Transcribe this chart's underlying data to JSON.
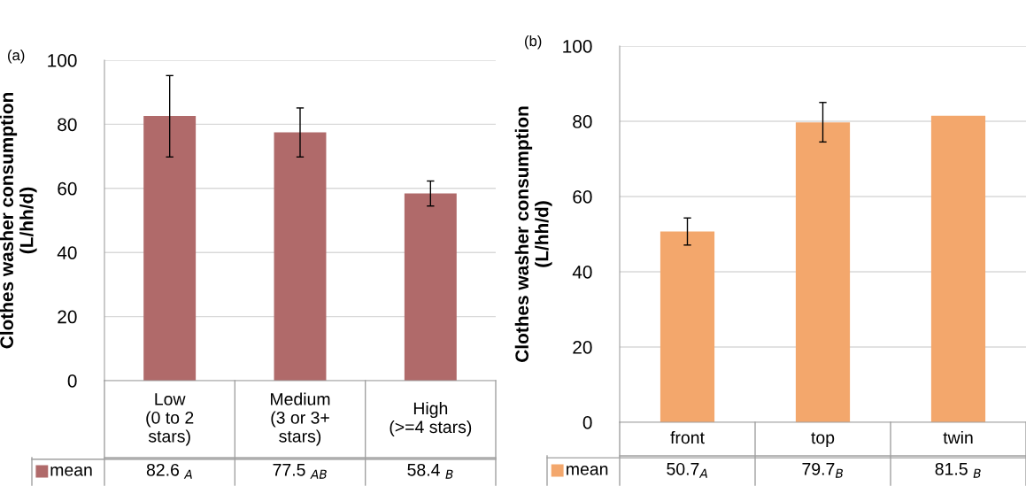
{
  "chart_data": [
    {
      "type": "bar",
      "title": "(a)",
      "ylabel": "Clothes washer consumption\n(L/hh/d)",
      "categories": [
        "Low\n(0 to 2\nstars)",
        "Medium\n(3 or 3+\nstars)",
        "High\n(>=4 stars)"
      ],
      "series": [
        {
          "name": "mean",
          "color": "#b06a6a",
          "values": [
            82.6,
            77.5,
            58.4
          ],
          "value_labels": [
            "82.6 $_{A}$",
            "77.5 $_{AB}$",
            "58.4 $_{B}$"
          ],
          "errors": [
            [
              69.8,
              95.2
            ],
            [
              69.8,
              85.1
            ],
            [
              54.5,
              62.3
            ]
          ]
        }
      ],
      "ylim": [
        0,
        100
      ],
      "yticks": [
        0,
        20,
        40,
        60,
        80,
        100
      ],
      "grid": "y",
      "legend": "bottom"
    },
    {
      "type": "bar",
      "title": "(b)",
      "ylabel": "Clothes washer consumption\n(L/hh/d)",
      "categories": [
        "front",
        "top",
        "twin"
      ],
      "series": [
        {
          "name": "mean",
          "color": "#f3a76c",
          "values": [
            50.7,
            79.7,
            81.5
          ],
          "value_labels": [
            "50.7$_{A}$",
            "79.7$_{B}$",
            "81.5 $_{B}$"
          ],
          "errors": [
            [
              47.1,
              54.3
            ],
            [
              74.5,
              85.0
            ],
            null
          ]
        }
      ],
      "ylim": [
        0,
        100
      ],
      "yticks": [
        0,
        20,
        40,
        60,
        80,
        100
      ],
      "grid": "y",
      "legend": "bottom"
    }
  ]
}
